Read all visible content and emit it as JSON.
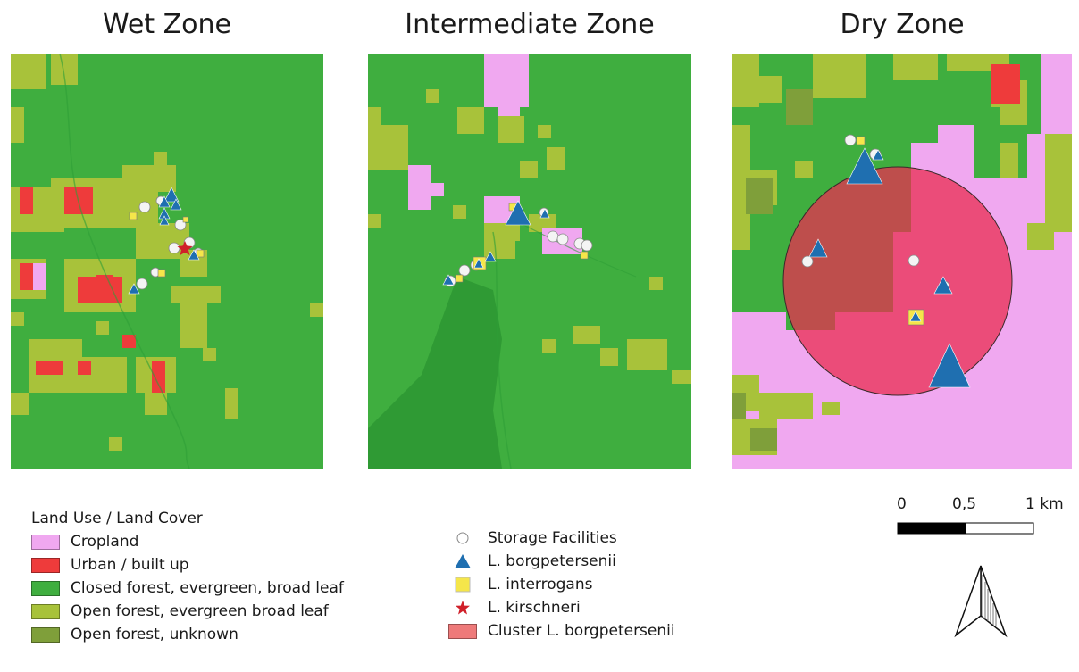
{
  "panels": [
    {
      "title": "Wet Zone"
    },
    {
      "title": "Intermediate Zone"
    },
    {
      "title": "Dry Zone"
    }
  ],
  "legend_landcover": {
    "heading": "Land Use / Land Cover",
    "items": [
      {
        "label": "Cropland",
        "color": "#f0a8f0"
      },
      {
        "label": "Urban / built up",
        "color": "#ee3b3b"
      },
      {
        "label": "Closed forest, evergreen, broad leaf",
        "color": "#3fae3f"
      },
      {
        "label": "Open forest, evergreen broad leaf",
        "color": "#a8c23a"
      },
      {
        "label": "Open forest, unknown",
        "color": "#7f9f3a"
      }
    ]
  },
  "legend_symbols": {
    "items": [
      {
        "label": "Storage Facilities",
        "symbol": "circle-icon",
        "color": "#ffffff"
      },
      {
        "label": "L. borgpetersenii",
        "symbol": "triangle-icon",
        "color": "#1f6fb0"
      },
      {
        "label": "L. interrogans",
        "symbol": "square-icon",
        "color": "#f5e64a"
      },
      {
        "label": "L. kirschneri",
        "symbol": "star-icon",
        "color": "#d0202a"
      },
      {
        "label": "Cluster L. borgpetersenii",
        "symbol": "swatch",
        "color": "#ee7a7a"
      }
    ]
  },
  "scale": {
    "labels": [
      "0",
      "0,5",
      "1 km"
    ]
  }
}
